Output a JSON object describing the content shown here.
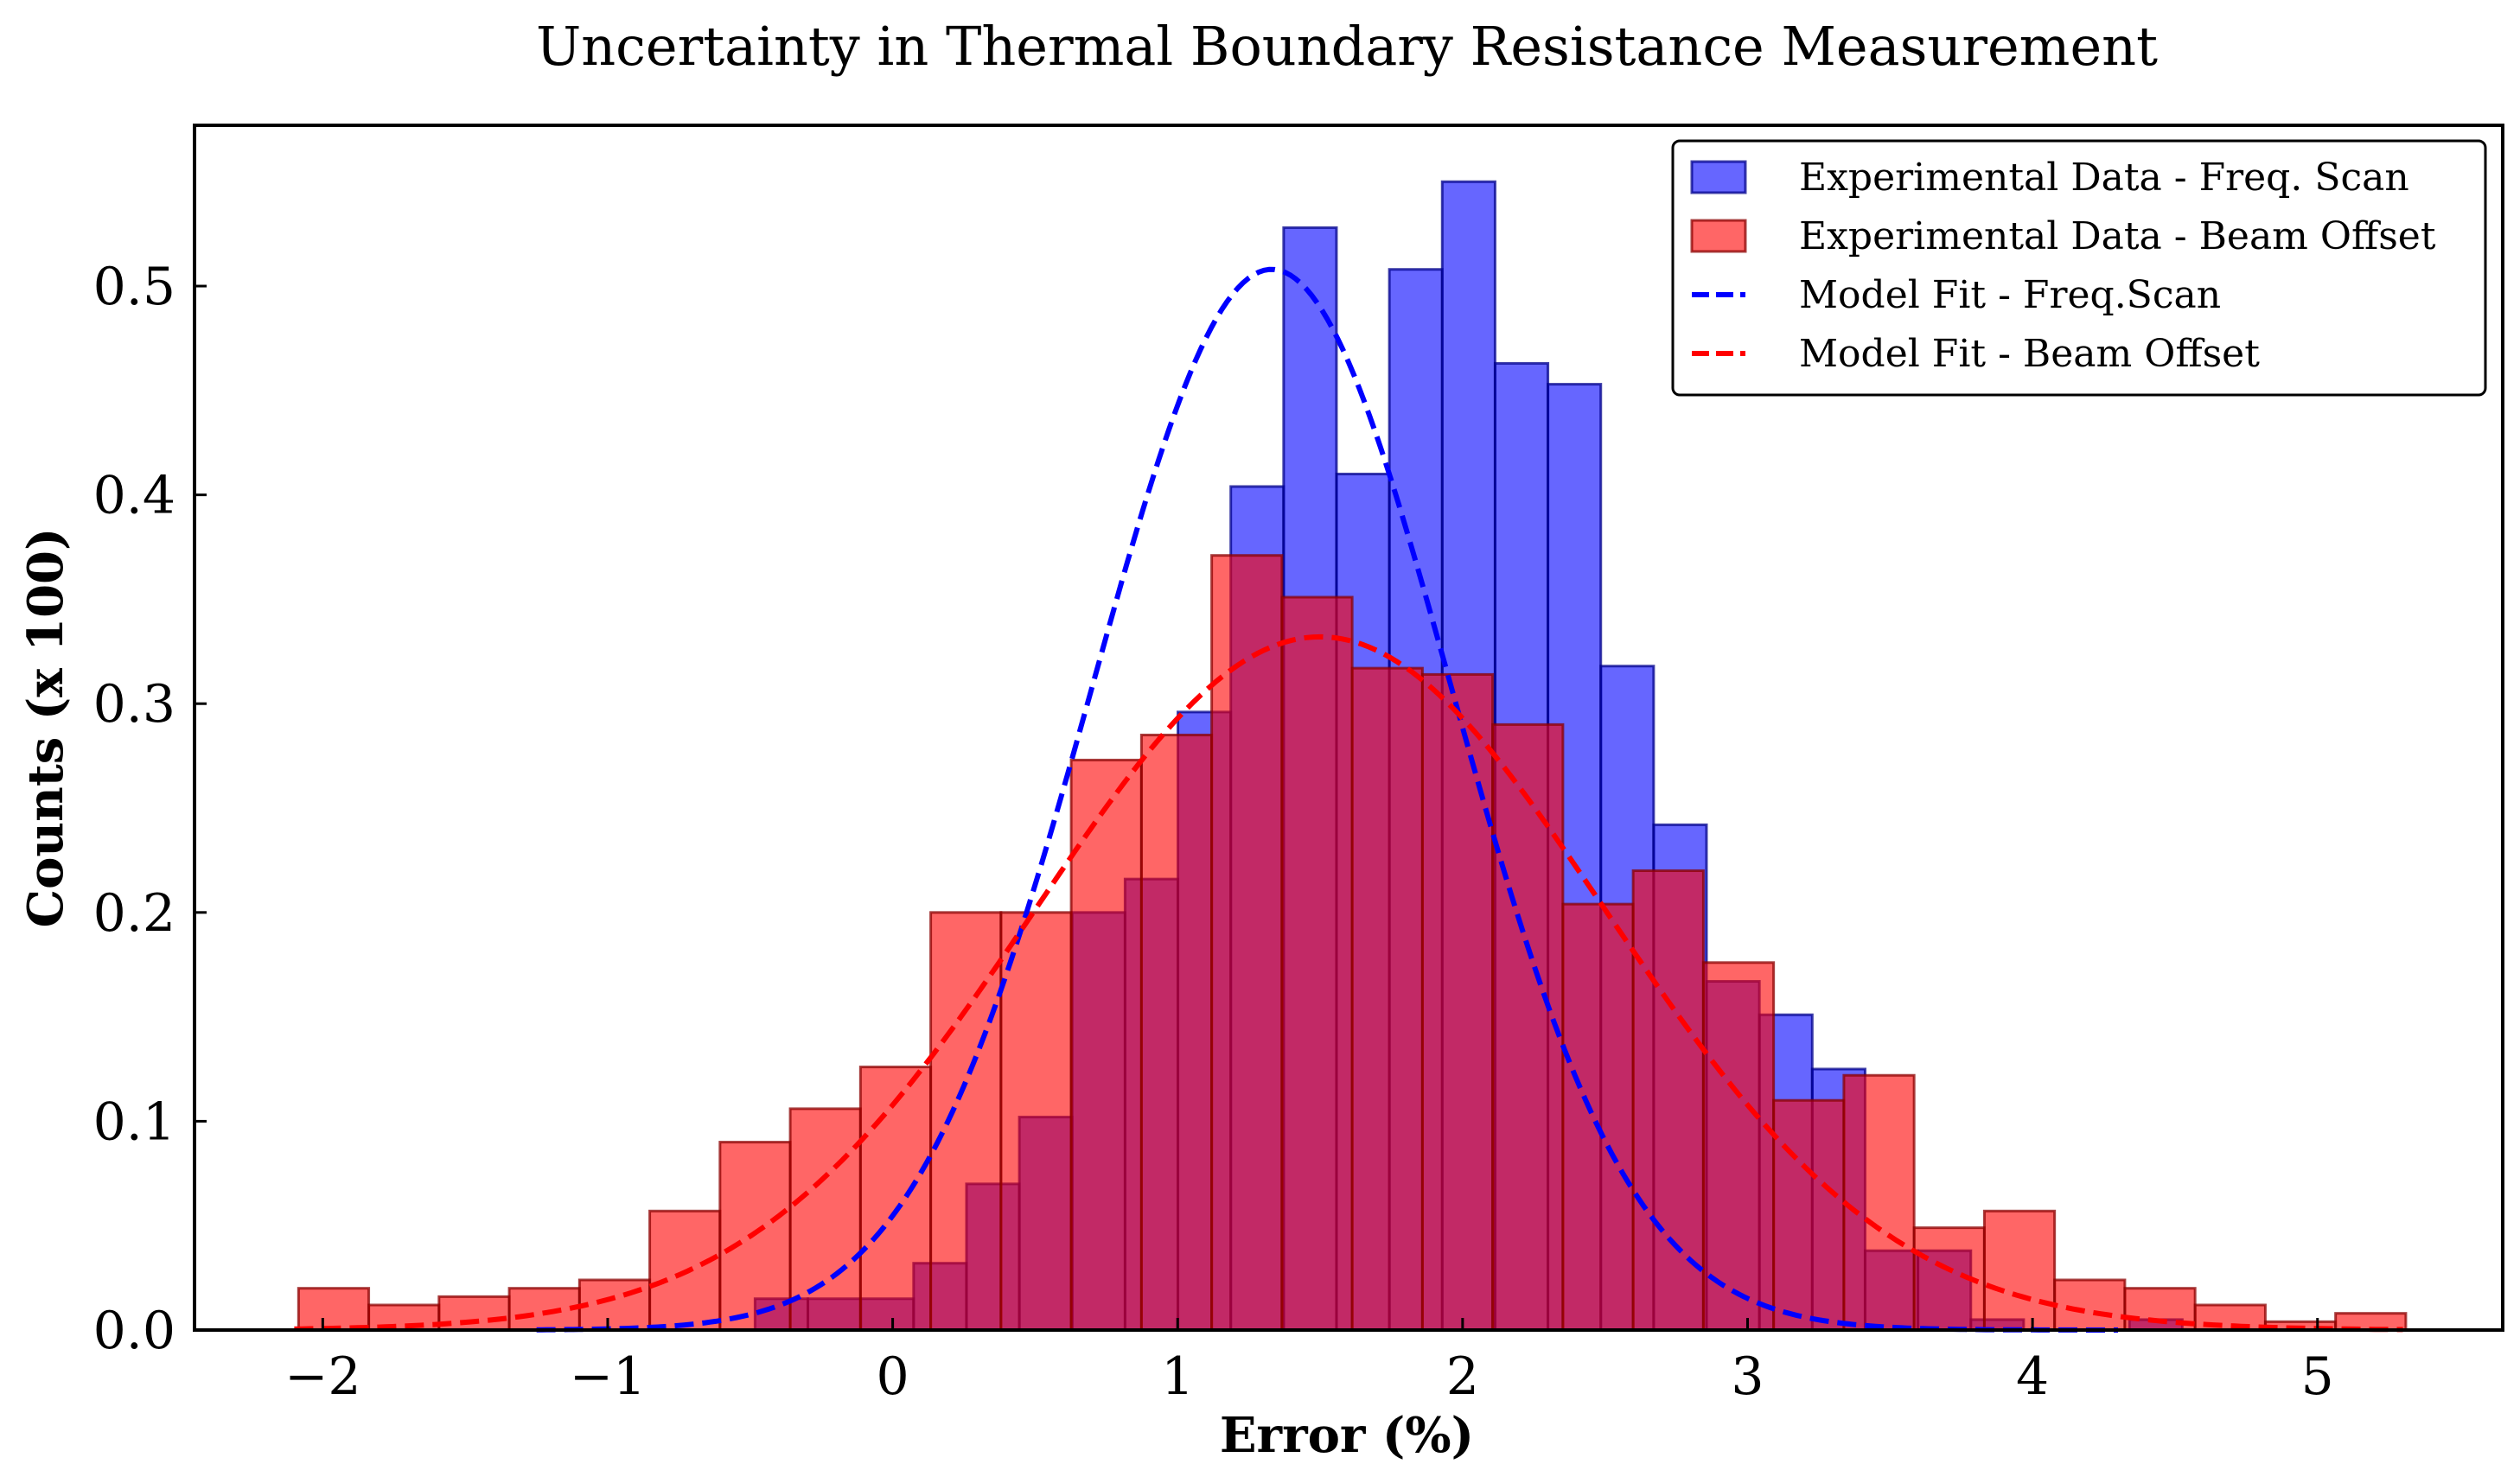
{
  "chart_data": {
    "type": "bar",
    "title": "Uncertainty in Thermal Boundary Resistance Measurement",
    "xlabel": "Error (%)",
    "ylabel": "Counts (x 100)",
    "xlim": [
      -2.45,
      5.65
    ],
    "ylim": [
      0,
      0.577
    ],
    "grid": false,
    "legend_position": "top-right",
    "xticks": [
      -2,
      -1,
      0,
      1,
      2,
      3,
      4,
      5
    ],
    "xtick_labels": [
      "−2",
      "−1",
      "0",
      "1",
      "2",
      "3",
      "4",
      "5"
    ],
    "yticks": [
      0.0,
      0.1,
      0.2,
      0.3,
      0.4,
      0.5
    ],
    "ytick_labels": [
      "0.0",
      "0.1",
      "0.2",
      "0.3",
      "0.4",
      "0.5"
    ],
    "series": [
      {
        "name": "Experimental Data - Freq. Scan",
        "kind": "histogram",
        "color": "#0000ff",
        "bin_start": -1.225,
        "bin_width": 0.1855,
        "values": [
          0.0,
          0.0,
          0.0,
          0.0,
          0.015,
          0.015,
          0.015,
          0.032,
          0.07,
          0.102,
          0.2,
          0.216,
          0.296,
          0.404,
          0.528,
          0.41,
          0.508,
          0.55,
          0.463,
          0.453,
          0.318,
          0.242,
          0.167,
          0.151,
          0.125,
          0.038,
          0.038,
          0.005,
          0.0,
          0.0,
          0.005
        ]
      },
      {
        "name": "Experimental Data - Beam Offset",
        "kind": "histogram",
        "color": "#ff0000",
        "bin_start": -2.085,
        "bin_width": 0.2465,
        "values": [
          0.02,
          0.012,
          0.016,
          0.02,
          0.024,
          0.057,
          0.09,
          0.106,
          0.126,
          0.2,
          0.2,
          0.273,
          0.285,
          0.371,
          0.351,
          0.317,
          0.314,
          0.29,
          0.204,
          0.22,
          0.176,
          0.11,
          0.122,
          0.049,
          0.057,
          0.024,
          0.02,
          0.012,
          0.004,
          0.008
        ]
      },
      {
        "name": "Model Fit - Freq.Scan",
        "kind": "gaussian",
        "color": "#0000ff",
        "style": "dashed",
        "amplitude": 0.508,
        "mean": 1.33,
        "sigma": 0.63,
        "x_range": [
          -1.25,
          4.3
        ]
      },
      {
        "name": "Model Fit - Beam Offset",
        "kind": "gaussian",
        "color": "#ff0000",
        "style": "dashed",
        "amplitude": 0.332,
        "mean": 1.5,
        "sigma": 1.0,
        "x_range": [
          -2.1,
          5.3
        ]
      }
    ]
  }
}
